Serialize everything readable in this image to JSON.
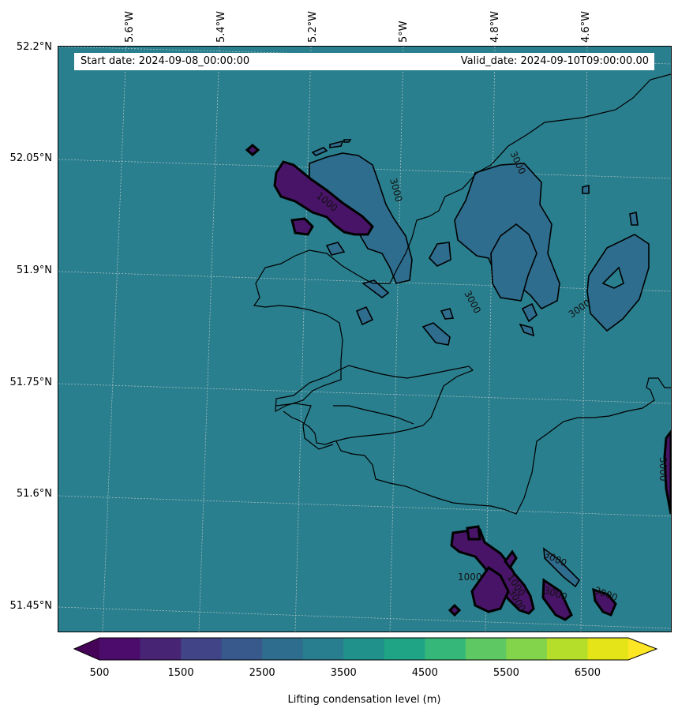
{
  "map": {
    "start_label": "Start date: 2024-09-08_00:00:00",
    "valid_label": "Valid_date: 2024-09-10T09:00:00.00",
    "longitude_labels": [
      "5.6°W",
      "5.4°W",
      "5.2°W",
      "5°W",
      "4.8°W",
      "4.6°W"
    ],
    "latitude_labels": [
      "52.2°N",
      "52.05°N",
      "51.9°N",
      "51.75°N",
      "51.6°N",
      "51.45°N"
    ],
    "contour_labels": [
      "3000",
      "3000",
      "3000",
      "3000",
      "3000",
      "3000",
      "3000",
      "3000",
      "1000",
      "1000",
      "1000",
      "3000"
    ],
    "colors": {
      "background_field": "#2a7f8e",
      "field_2500_3000": "#2e6d8e",
      "field_500_1000": "#481467",
      "coastline": "#000000",
      "grid": "#bbbbbb"
    }
  },
  "colorbar": {
    "label": "Lifting condensation level (m)",
    "tick_labels": [
      "500",
      "1500",
      "2500",
      "3500",
      "4500",
      "5500",
      "6500"
    ],
    "levels": [
      500,
      1000,
      1500,
      2000,
      2500,
      3000,
      3500,
      4000,
      4500,
      5000,
      5500,
      6000,
      6500,
      7000
    ],
    "colors": [
      "#450457",
      "#4b0c6b",
      "#482475",
      "#414487",
      "#38598c",
      "#2f6d8e",
      "#287d8e",
      "#21918c",
      "#20a486",
      "#35b779",
      "#5ec962",
      "#84d44b",
      "#b5de2b",
      "#e5e419",
      "#fde725"
    ]
  }
}
